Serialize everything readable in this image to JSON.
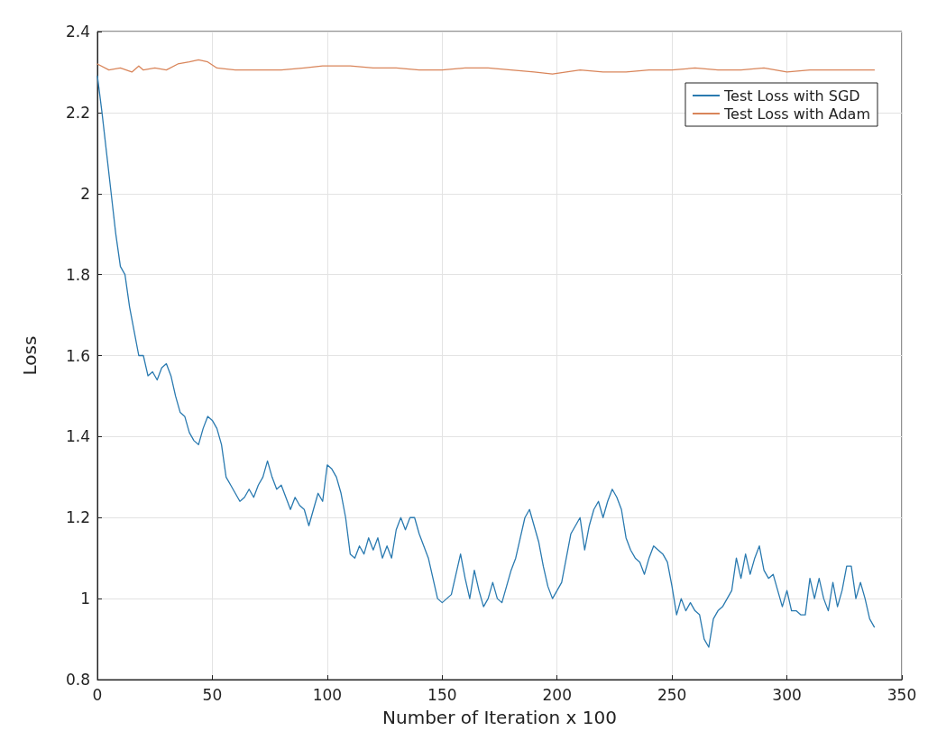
{
  "chart_data": {
    "type": "line",
    "xlabel": "Number of Iteration x 100",
    "ylabel": "Loss",
    "xlim": [
      0,
      350
    ],
    "xticks": [
      0,
      50,
      100,
      150,
      200,
      250,
      300,
      350
    ],
    "ylim": [
      0.8,
      2.4
    ],
    "yticks": [
      0.8,
      1,
      1.2,
      1.4,
      1.6,
      1.8,
      2,
      2.2,
      2.4
    ],
    "grid": true,
    "legend": "top right",
    "marker": "none",
    "line_style": "solid",
    "series": [
      {
        "name": "Test Loss with SGD",
        "color": "#2a7ab0",
        "x": [
          0,
          2,
          4,
          6,
          8,
          10,
          12,
          14,
          16,
          18,
          20,
          22,
          24,
          26,
          28,
          30,
          32,
          34,
          36,
          38,
          40,
          42,
          44,
          46,
          48,
          50,
          52,
          54,
          56,
          58,
          60,
          62,
          64,
          66,
          68,
          70,
          72,
          74,
          76,
          78,
          80,
          82,
          84,
          86,
          88,
          90,
          92,
          94,
          96,
          98,
          100,
          102,
          104,
          106,
          108,
          110,
          112,
          114,
          116,
          118,
          120,
          122,
          124,
          126,
          128,
          130,
          132,
          134,
          136,
          138,
          140,
          142,
          144,
          146,
          148,
          150,
          152,
          154,
          156,
          158,
          160,
          162,
          164,
          166,
          168,
          170,
          172,
          174,
          176,
          178,
          180,
          182,
          184,
          186,
          188,
          190,
          192,
          194,
          196,
          198,
          200,
          202,
          204,
          206,
          208,
          210,
          212,
          214,
          216,
          218,
          220,
          222,
          224,
          226,
          228,
          230,
          232,
          234,
          236,
          238,
          240,
          242,
          244,
          246,
          248,
          250,
          252,
          254,
          256,
          258,
          260,
          262,
          264,
          266,
          268,
          270,
          272,
          274,
          276,
          278,
          280,
          282,
          284,
          286,
          288,
          290,
          292,
          294,
          296,
          298,
          300,
          302,
          304,
          306,
          308,
          310,
          312,
          314,
          316,
          318,
          320,
          322,
          324,
          326,
          328,
          330,
          332,
          334,
          336,
          338
        ],
        "values": [
          2.29,
          2.2,
          2.1,
          2.0,
          1.9,
          1.82,
          1.8,
          1.72,
          1.66,
          1.6,
          1.6,
          1.55,
          1.56,
          1.54,
          1.57,
          1.58,
          1.55,
          1.5,
          1.46,
          1.45,
          1.41,
          1.39,
          1.38,
          1.42,
          1.45,
          1.44,
          1.42,
          1.38,
          1.3,
          1.28,
          1.26,
          1.24,
          1.25,
          1.27,
          1.25,
          1.28,
          1.3,
          1.34,
          1.3,
          1.27,
          1.28,
          1.25,
          1.22,
          1.25,
          1.23,
          1.22,
          1.18,
          1.22,
          1.26,
          1.24,
          1.33,
          1.32,
          1.3,
          1.26,
          1.2,
          1.11,
          1.1,
          1.13,
          1.11,
          1.15,
          1.12,
          1.15,
          1.1,
          1.13,
          1.1,
          1.17,
          1.2,
          1.17,
          1.2,
          1.2,
          1.16,
          1.13,
          1.1,
          1.05,
          1.0,
          0.99,
          1.0,
          1.01,
          1.06,
          1.11,
          1.05,
          1.0,
          1.07,
          1.02,
          0.98,
          1.0,
          1.04,
          1.0,
          0.99,
          1.03,
          1.07,
          1.1,
          1.15,
          1.2,
          1.22,
          1.18,
          1.14,
          1.08,
          1.03,
          1.0,
          1.02,
          1.04,
          1.1,
          1.16,
          1.18,
          1.2,
          1.12,
          1.18,
          1.22,
          1.24,
          1.2,
          1.24,
          1.27,
          1.25,
          1.22,
          1.15,
          1.12,
          1.1,
          1.09,
          1.06,
          1.1,
          1.13,
          1.12,
          1.11,
          1.09,
          1.03,
          0.96,
          1.0,
          0.97,
          0.99,
          0.97,
          0.96,
          0.9,
          0.88,
          0.95,
          0.97,
          0.98,
          1.0,
          1.02,
          1.1,
          1.05,
          1.11,
          1.06,
          1.1,
          1.13,
          1.07,
          1.05,
          1.06,
          1.02,
          0.98,
          1.02,
          0.97,
          0.97,
          0.96,
          0.96,
          1.05,
          1.0,
          1.05,
          1.0,
          0.97,
          1.04,
          0.98,
          1.02,
          1.08,
          1.08,
          1.0,
          1.04,
          1.0,
          0.95,
          0.93
        ]
      },
      {
        "name": "Test Loss with Adam",
        "color": "#d9855a",
        "x": [
          0,
          5,
          10,
          15,
          18,
          20,
          25,
          30,
          35,
          40,
          44,
          48,
          52,
          60,
          70,
          80,
          90,
          98,
          110,
          120,
          130,
          140,
          150,
          160,
          170,
          180,
          190,
          198,
          210,
          220,
          230,
          240,
          250,
          260,
          270,
          280,
          290,
          300,
          310,
          320,
          330,
          338
        ],
        "values": [
          2.32,
          2.305,
          2.31,
          2.3,
          2.315,
          2.305,
          2.31,
          2.305,
          2.32,
          2.325,
          2.33,
          2.325,
          2.31,
          2.305,
          2.305,
          2.305,
          2.31,
          2.315,
          2.315,
          2.31,
          2.31,
          2.305,
          2.305,
          2.31,
          2.31,
          2.305,
          2.3,
          2.295,
          2.305,
          2.3,
          2.3,
          2.305,
          2.305,
          2.31,
          2.305,
          2.305,
          2.31,
          2.3,
          2.305,
          2.305,
          2.305,
          2.305
        ]
      }
    ]
  }
}
